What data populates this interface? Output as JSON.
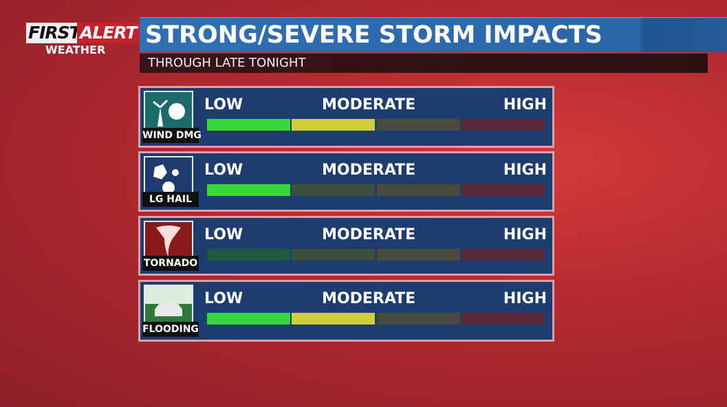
{
  "logo": {
    "first": "FIRST",
    "alert": "ALERT",
    "sub": "WEATHER"
  },
  "header": {
    "title": "STRONG/SEVERE STORM IMPACTS",
    "subtitle": "THROUGH LATE TONIGHT"
  },
  "scale": [
    "LOW",
    "MODERATE",
    "HIGH"
  ],
  "rows": [
    {
      "label": "WIND DMG",
      "level": 2
    },
    {
      "label": "LG HAIL",
      "level": 1
    },
    {
      "label": "TORNADO",
      "level": 0
    },
    {
      "label": "FLOODING",
      "level": 2
    }
  ]
}
